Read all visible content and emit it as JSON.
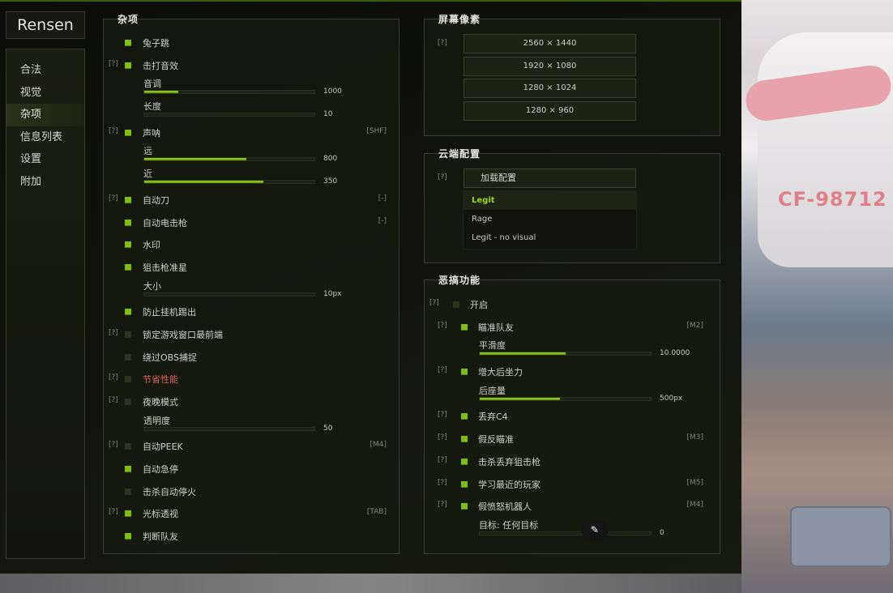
{
  "app": {
    "logo": "Rensen"
  },
  "sidebar": {
    "items": [
      {
        "label": "合法"
      },
      {
        "label": "视觉"
      },
      {
        "label": "杂项",
        "selected": true
      },
      {
        "label": "信息列表"
      },
      {
        "label": "设置"
      },
      {
        "label": "附加"
      }
    ]
  },
  "misc": {
    "title": "杂项",
    "rows": [
      {
        "type": "toggle",
        "label": "兔子跳",
        "on": true
      },
      {
        "type": "toggle",
        "help": "[?]",
        "label": "击打音效",
        "on": true
      },
      {
        "type": "slider",
        "label": "音调",
        "value": "1000",
        "fill": 0.2
      },
      {
        "type": "slider",
        "label": "长度",
        "value": "10",
        "fill": 0
      },
      {
        "type": "toggle",
        "help": "[?]",
        "label": "声呐",
        "on": true,
        "key": "[SHF]"
      },
      {
        "type": "slider",
        "label": "远",
        "value": "800",
        "fill": 0.6
      },
      {
        "type": "slider",
        "label": "近",
        "value": "350",
        "fill": 0.7
      },
      {
        "type": "toggle",
        "help": "[?]",
        "label": "自动刀",
        "on": true,
        "key": "[-]"
      },
      {
        "type": "toggle",
        "label": "自动电击枪",
        "on": true,
        "key": "[-]"
      },
      {
        "type": "toggle",
        "label": "水印",
        "on": true
      },
      {
        "type": "toggle",
        "label": "狙击枪准星",
        "on": true
      },
      {
        "type": "slider",
        "label": "大小",
        "value": "10px",
        "fill": 0
      },
      {
        "type": "toggle",
        "label": "防止挂机踢出",
        "on": true
      },
      {
        "type": "toggle",
        "help": "[?]",
        "label": "锁定游戏窗口最前端",
        "on": false
      },
      {
        "type": "toggle",
        "label": "绕过OBS捕捉",
        "on": false
      },
      {
        "type": "toggle",
        "help": "[?]",
        "label": "节省性能",
        "on": false,
        "warn": true
      },
      {
        "type": "toggle",
        "help": "[?]",
        "label": "夜晚模式",
        "on": false
      },
      {
        "type": "slider",
        "label": "透明度",
        "value": "50",
        "fill": 0
      },
      {
        "type": "toggle",
        "help": "[?]",
        "label": "自动PEEK",
        "on": false,
        "key": "[M4]"
      },
      {
        "type": "toggle",
        "label": "自动急停",
        "on": true
      },
      {
        "type": "toggle",
        "label": "击杀自动停火",
        "on": false
      },
      {
        "type": "toggle",
        "help": "[?]",
        "label": "光标透视",
        "on": true,
        "key": "[TAB]"
      },
      {
        "type": "toggle",
        "label": "判断队友",
        "on": true
      }
    ]
  },
  "resolution": {
    "title": "屏幕像素",
    "help": "[?]",
    "options": [
      "2560 × 1440",
      "1920 × 1080",
      "1280 × 1024",
      "1280 × 960"
    ]
  },
  "cloud": {
    "title": "云端配置",
    "help": "[?]",
    "load_label": "加载配置",
    "options": [
      {
        "label": "Legit",
        "selected": true
      },
      {
        "label": "Rage"
      },
      {
        "label": "Legit - no visual"
      }
    ]
  },
  "troll": {
    "title": "恶搞功能",
    "rows": [
      {
        "type": "toggle",
        "help": "[?]",
        "label": "开启",
        "on": false,
        "top": true
      },
      {
        "type": "toggle",
        "help": "[?]",
        "label": "瞄准队友",
        "on": true,
        "key": "[M2]"
      },
      {
        "type": "slider",
        "label": "平滑度",
        "value": "10.0000",
        "fill": 0.5
      },
      {
        "type": "toggle",
        "help": "[?]",
        "label": "增大后坐力",
        "on": true
      },
      {
        "type": "slider",
        "label": "后座量",
        "value": "500px",
        "fill": 0.47
      },
      {
        "type": "toggle",
        "help": "[?]",
        "label": "丢弃C4",
        "on": true
      },
      {
        "type": "toggle",
        "help": "[?]",
        "label": "假反瞄准",
        "on": true,
        "key": "[M3]"
      },
      {
        "type": "toggle",
        "help": "[?]",
        "label": "击杀丢弃狙击枪",
        "on": true
      },
      {
        "type": "toggle",
        "help": "[?]",
        "label": "学习最近的玩家",
        "on": true,
        "key": "[M5]"
      },
      {
        "type": "toggle",
        "help": "[?]",
        "label": "假愤怒机器人",
        "on": true,
        "key": "[M4]"
      },
      {
        "type": "slider",
        "label": "目标: 任何目标",
        "value": "0",
        "fill": 0
      }
    ]
  },
  "colors": {
    "accent": "#7fbf10",
    "warn": "#e0645a"
  },
  "icons": {
    "floating": "magic-wand-icon"
  }
}
